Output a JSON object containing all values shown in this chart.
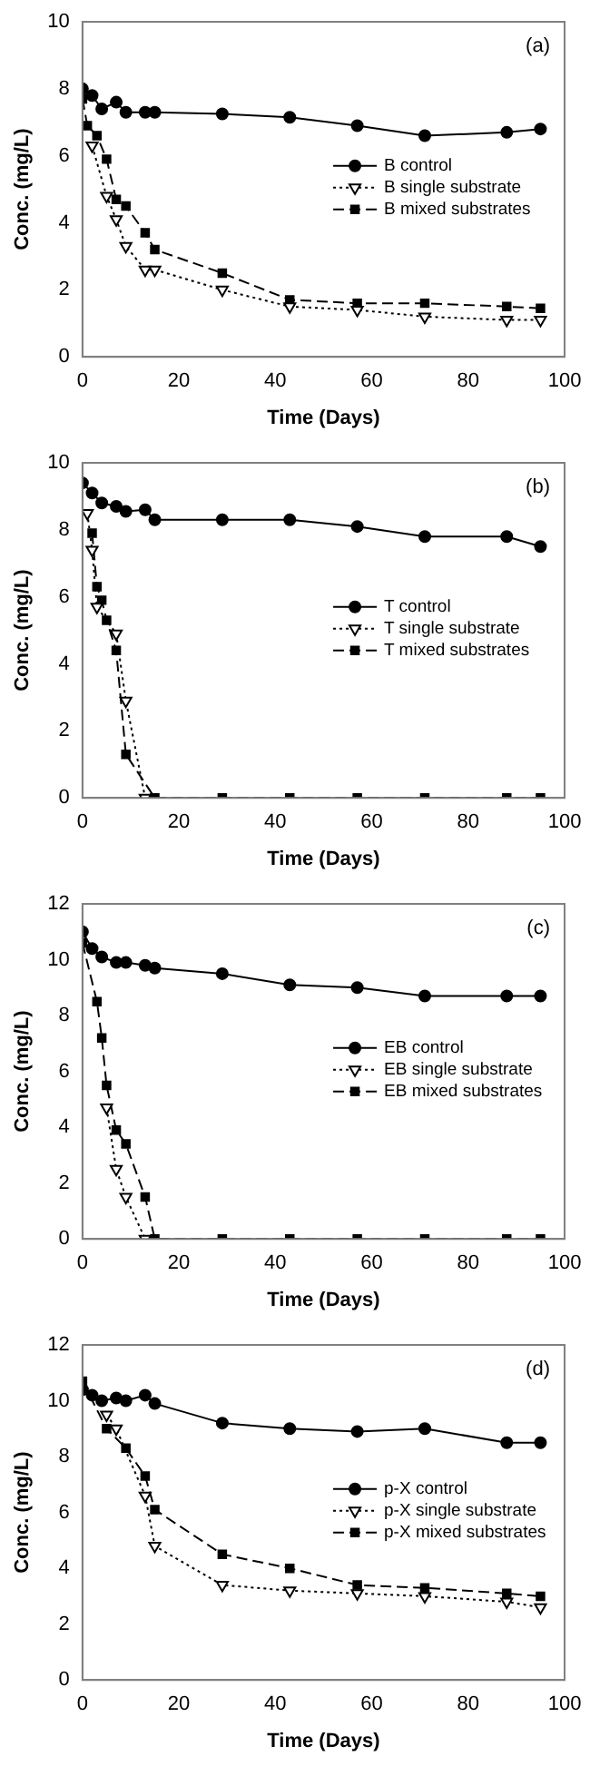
{
  "chart_data": [
    {
      "type": "line",
      "xlabel": "Time (Days)",
      "ylabel": "Conc. (mg/L)",
      "annotations": [
        "(a)"
      ],
      "xlim": [
        0,
        100
      ],
      "xticks": [
        0,
        20,
        40,
        60,
        80,
        100
      ],
      "ylim": [
        0,
        10
      ],
      "yticks": [
        0,
        2,
        4,
        6,
        8,
        10
      ],
      "grid": false,
      "legend": "right",
      "series": [
        {
          "name": "B control",
          "color": "#000000",
          "marker": "circle",
          "line_style": "solid",
          "x": [
            0,
            2,
            4,
            7,
            9,
            13,
            15,
            29,
            43,
            57,
            71,
            88,
            95
          ],
          "values": [
            8.0,
            7.8,
            7.4,
            7.6,
            7.3,
            7.3,
            7.3,
            7.25,
            7.15,
            6.9,
            6.6,
            6.7,
            6.8
          ]
        },
        {
          "name": "B single substrate",
          "color": "#000000",
          "marker": "triangle",
          "line_style": "dotted",
          "x": [
            2,
            5,
            7,
            9,
            13,
            15,
            29,
            43,
            57,
            71,
            88,
            95
          ],
          "values": [
            6.3,
            4.8,
            4.1,
            3.3,
            2.6,
            2.6,
            2.0,
            1.5,
            1.4,
            1.2,
            1.1,
            1.1
          ]
        },
        {
          "name": "B mixed substrates",
          "color": "#000000",
          "marker": "square",
          "line_style": "dashed",
          "x": [
            0,
            1,
            3,
            5,
            7,
            9,
            13,
            15,
            29,
            43,
            57,
            71,
            88,
            95
          ],
          "values": [
            7.7,
            6.9,
            6.6,
            5.9,
            4.7,
            4.5,
            3.7,
            3.2,
            2.5,
            1.7,
            1.6,
            1.6,
            1.5,
            1.45
          ]
        }
      ]
    },
    {
      "type": "line",
      "xlabel": "Time (Days)",
      "ylabel": "Conc. (mg/L)",
      "annotations": [
        "(b)"
      ],
      "xlim": [
        0,
        100
      ],
      "xticks": [
        0,
        20,
        40,
        60,
        80,
        100
      ],
      "ylim": [
        0,
        10
      ],
      "yticks": [
        0,
        2,
        4,
        6,
        8,
        10
      ],
      "grid": false,
      "legend": "right",
      "series": [
        {
          "name": "T control",
          "color": "#000000",
          "marker": "circle",
          "line_style": "solid",
          "x": [
            0,
            2,
            4,
            7,
            9,
            13,
            15,
            29,
            43,
            57,
            71,
            88,
            95
          ],
          "values": [
            9.4,
            9.1,
            8.8,
            8.7,
            8.55,
            8.6,
            8.3,
            8.3,
            8.3,
            8.1,
            7.8,
            7.8,
            7.5
          ]
        },
        {
          "name": "T single substrate",
          "color": "#000000",
          "marker": "triangle",
          "line_style": "dotted",
          "x": [
            1,
            2,
            3,
            7,
            9,
            13
          ],
          "values": [
            8.5,
            7.4,
            5.7,
            4.9,
            2.9,
            0
          ]
        },
        {
          "name": "T mixed substrates",
          "color": "#000000",
          "marker": "square",
          "line_style": "dashed",
          "x": [
            2,
            3,
            4,
            5,
            7,
            9,
            15,
            29,
            43,
            57,
            71,
            88,
            95
          ],
          "values": [
            7.9,
            6.3,
            5.9,
            5.3,
            4.4,
            1.3,
            0,
            0,
            0,
            0,
            0,
            0,
            0
          ]
        }
      ]
    },
    {
      "type": "line",
      "xlabel": "Time (Days)",
      "ylabel": "Conc. (mg/L)",
      "annotations": [
        "(c)"
      ],
      "xlim": [
        0,
        100
      ],
      "xticks": [
        0,
        20,
        40,
        60,
        80,
        100
      ],
      "ylim": [
        0,
        12
      ],
      "yticks": [
        0,
        2,
        4,
        6,
        8,
        10,
        12
      ],
      "grid": false,
      "legend": "right",
      "series": [
        {
          "name": "EB control",
          "color": "#000000",
          "marker": "circle",
          "line_style": "solid",
          "x": [
            0,
            2,
            4,
            7,
            9,
            13,
            15,
            29,
            43,
            57,
            71,
            88,
            95
          ],
          "values": [
            11.0,
            10.4,
            10.1,
            9.9,
            9.9,
            9.8,
            9.7,
            9.5,
            9.1,
            9.0,
            8.7,
            8.7,
            8.7
          ]
        },
        {
          "name": "EB single substrate",
          "color": "#000000",
          "marker": "triangle",
          "line_style": "dotted",
          "x": [
            5,
            7,
            9,
            13
          ],
          "values": [
            4.7,
            2.5,
            1.5,
            0
          ]
        },
        {
          "name": "EB mixed substrates",
          "color": "#000000",
          "marker": "square",
          "line_style": "dashed",
          "x": [
            0,
            3,
            4,
            5,
            7,
            9,
            13,
            15,
            29,
            43,
            57,
            71,
            88,
            95
          ],
          "values": [
            10.6,
            8.5,
            7.2,
            5.5,
            3.9,
            3.4,
            1.5,
            0,
            0,
            0,
            0,
            0,
            0,
            0
          ]
        }
      ]
    },
    {
      "type": "line",
      "xlabel": "Time (Days)",
      "ylabel": "Conc. (mg/L)",
      "annotations": [
        "(d)"
      ],
      "xlim": [
        0,
        100
      ],
      "xticks": [
        0,
        20,
        40,
        60,
        80,
        100
      ],
      "ylim": [
        0,
        12
      ],
      "yticks": [
        0,
        2,
        4,
        6,
        8,
        10,
        12
      ],
      "grid": false,
      "legend": "right",
      "series": [
        {
          "name": "p-X control",
          "color": "#000000",
          "marker": "circle",
          "line_style": "solid",
          "x": [
            0,
            2,
            4,
            7,
            9,
            13,
            15,
            29,
            43,
            57,
            71,
            88,
            95
          ],
          "values": [
            10.4,
            10.2,
            10.0,
            10.1,
            10.0,
            10.2,
            9.9,
            9.2,
            9.0,
            8.9,
            9.0,
            8.5,
            8.5
          ]
        },
        {
          "name": "p-X single substrate",
          "color": "#000000",
          "marker": "triangle",
          "line_style": "dotted",
          "x": [
            5,
            7,
            13,
            15,
            29,
            43,
            57,
            71,
            88,
            95
          ],
          "values": [
            9.5,
            9.0,
            6.6,
            4.8,
            3.4,
            3.2,
            3.1,
            3.0,
            2.8,
            2.6
          ]
        },
        {
          "name": "p-X mixed substrates",
          "color": "#000000",
          "marker": "square",
          "line_style": "dashed",
          "x": [
            0,
            5,
            9,
            13,
            15,
            29,
            43,
            57,
            71,
            88,
            95
          ],
          "values": [
            10.7,
            9.0,
            8.3,
            7.3,
            6.1,
            4.5,
            4.0,
            3.4,
            3.3,
            3.1,
            3.0
          ]
        }
      ]
    }
  ]
}
